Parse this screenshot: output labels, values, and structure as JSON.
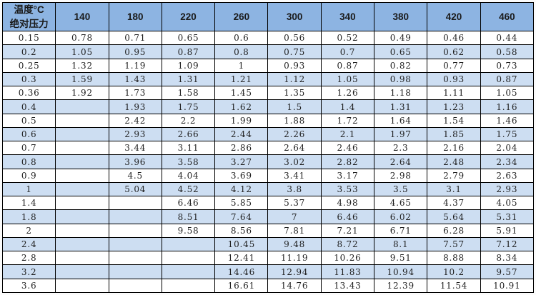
{
  "chart_data": {
    "type": "table",
    "corner_header": {
      "line1": "温度°C",
      "line2": "绝对压力"
    },
    "temperature_columns": [
      "140",
      "180",
      "220",
      "260",
      "300",
      "340",
      "380",
      "420",
      "460"
    ],
    "rows": [
      {
        "pressure": "0.15",
        "values": [
          "0.78",
          "0.71",
          "0.65",
          "0.6",
          "0.56",
          "0.52",
          "0.49",
          "0.46",
          "0.44"
        ]
      },
      {
        "pressure": "0.2",
        "values": [
          "1.05",
          "0.95",
          "0.87",
          "0.8",
          "0.75",
          "0.7",
          "0.65",
          "0.62",
          "0.58"
        ]
      },
      {
        "pressure": "0.25",
        "values": [
          "1.32",
          "1.19",
          "1.09",
          "1",
          "0.93",
          "0.87",
          "0.82",
          "0.77",
          "0.73"
        ]
      },
      {
        "pressure": "0.3",
        "values": [
          "1.59",
          "1.43",
          "1.31",
          "1.21",
          "1.12",
          "1.05",
          "0.98",
          "0.93",
          "0.87"
        ]
      },
      {
        "pressure": "0.36",
        "values": [
          "1.92",
          "1.73",
          "1.58",
          "1.45",
          "1.35",
          "1.26",
          "1.18",
          "1.11",
          "1.05"
        ]
      },
      {
        "pressure": "0.4",
        "values": [
          "",
          "1.93",
          "1.75",
          "1.62",
          "1.5",
          "1.4",
          "1.31",
          "1.23",
          "1.16"
        ]
      },
      {
        "pressure": "0.5",
        "values": [
          "",
          "2.42",
          "2.2",
          "1.99",
          "1.88",
          "1.72",
          "1.64",
          "1.54",
          "1.46"
        ]
      },
      {
        "pressure": "0.6",
        "values": [
          "",
          "2.93",
          "2.66",
          "2.44",
          "2.26",
          "2.1",
          "1.97",
          "1.85",
          "1.75"
        ]
      },
      {
        "pressure": "0.7",
        "values": [
          "",
          "3.44",
          "3.11",
          "2.86",
          "2.64",
          "2.46",
          "2.3",
          "2.16",
          "2.04"
        ]
      },
      {
        "pressure": "0.8",
        "values": [
          "",
          "3.96",
          "3.58",
          "3.27",
          "3.02",
          "2.82",
          "2.64",
          "2.48",
          "2.34"
        ]
      },
      {
        "pressure": "0.9",
        "values": [
          "",
          "4.5",
          "4.04",
          "3.69",
          "3.41",
          "3.17",
          "2.98",
          "2.79",
          "2.63"
        ]
      },
      {
        "pressure": "1",
        "values": [
          "",
          "5.04",
          "4.52",
          "4.12",
          "3.8",
          "3.53",
          "3.5",
          "3.1",
          "2.93"
        ]
      },
      {
        "pressure": "1.4",
        "values": [
          "",
          "",
          "6.46",
          "5.85",
          "5.37",
          "4.98",
          "4.65",
          "4.37",
          "4.05"
        ]
      },
      {
        "pressure": "1.8",
        "values": [
          "",
          "",
          "8.51",
          "7.64",
          "7",
          "6.46",
          "6.02",
          "5.64",
          "5.31"
        ]
      },
      {
        "pressure": "2",
        "values": [
          "",
          "",
          "9.58",
          "8.56",
          "7.81",
          "7.21",
          "6.71",
          "6.28",
          "5.91"
        ]
      },
      {
        "pressure": "2.4",
        "values": [
          "",
          "",
          "",
          "10.45",
          "9.48",
          "8.72",
          "8.1",
          "7.57",
          "7.12"
        ]
      },
      {
        "pressure": "2.8",
        "values": [
          "",
          "",
          "",
          "12.41",
          "11.19",
          "10.26",
          "9.51",
          "8.88",
          "8.34"
        ]
      },
      {
        "pressure": "3.2",
        "values": [
          "",
          "",
          "",
          "14.46",
          "12.94",
          "11.83",
          "10.94",
          "10.2",
          "9.57"
        ]
      },
      {
        "pressure": "3.6",
        "values": [
          "",
          "",
          "",
          "16.61",
          "14.76",
          "13.43",
          "12.39",
          "11.54",
          "10.91"
        ]
      }
    ]
  },
  "colors": {
    "header_bg": "#8DB4E2",
    "row_alt_bg": "#CDDEF2",
    "row_bg": "#FFFFFF",
    "border": "#000000"
  }
}
